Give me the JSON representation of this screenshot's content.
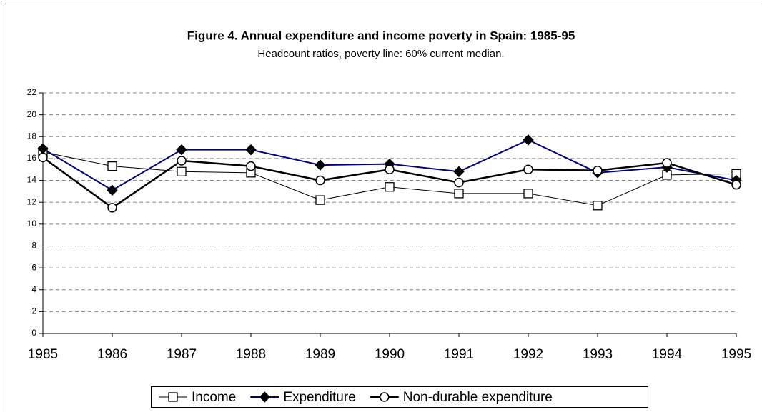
{
  "chart_data": {
    "type": "line",
    "title": "Figure 4. Annual expenditure and income poverty in Spain: 1985-95",
    "subtitle": "Headcount ratios, poverty line: 60% current median.",
    "categories": [
      "1985",
      "1986",
      "1987",
      "1988",
      "1989",
      "1990",
      "1991",
      "1992",
      "1993",
      "1994",
      "1995"
    ],
    "series": [
      {
        "name": "Income",
        "color": "#000000",
        "marker": "square",
        "values": [
          16.6,
          15.3,
          14.8,
          14.7,
          12.2,
          13.4,
          12.8,
          12.8,
          11.7,
          14.5,
          14.6
        ]
      },
      {
        "name": "Expenditure",
        "color": "#000080",
        "marker": "diamond",
        "values": [
          16.9,
          13.1,
          16.8,
          16.8,
          15.4,
          15.5,
          14.8,
          17.7,
          14.7,
          15.2,
          14.0
        ]
      },
      {
        "name": "Non-durable expenditure",
        "color": "#000000",
        "marker": "circle",
        "values": [
          16.1,
          11.5,
          15.8,
          15.3,
          14.0,
          15.0,
          13.8,
          15.0,
          14.9,
          15.6,
          13.6
        ]
      }
    ],
    "ylim": [
      0,
      22
    ],
    "yticks": [
      0,
      2,
      4,
      6,
      8,
      10,
      12,
      14,
      16,
      18,
      20,
      22
    ],
    "grid": true,
    "legend": "bottom"
  }
}
